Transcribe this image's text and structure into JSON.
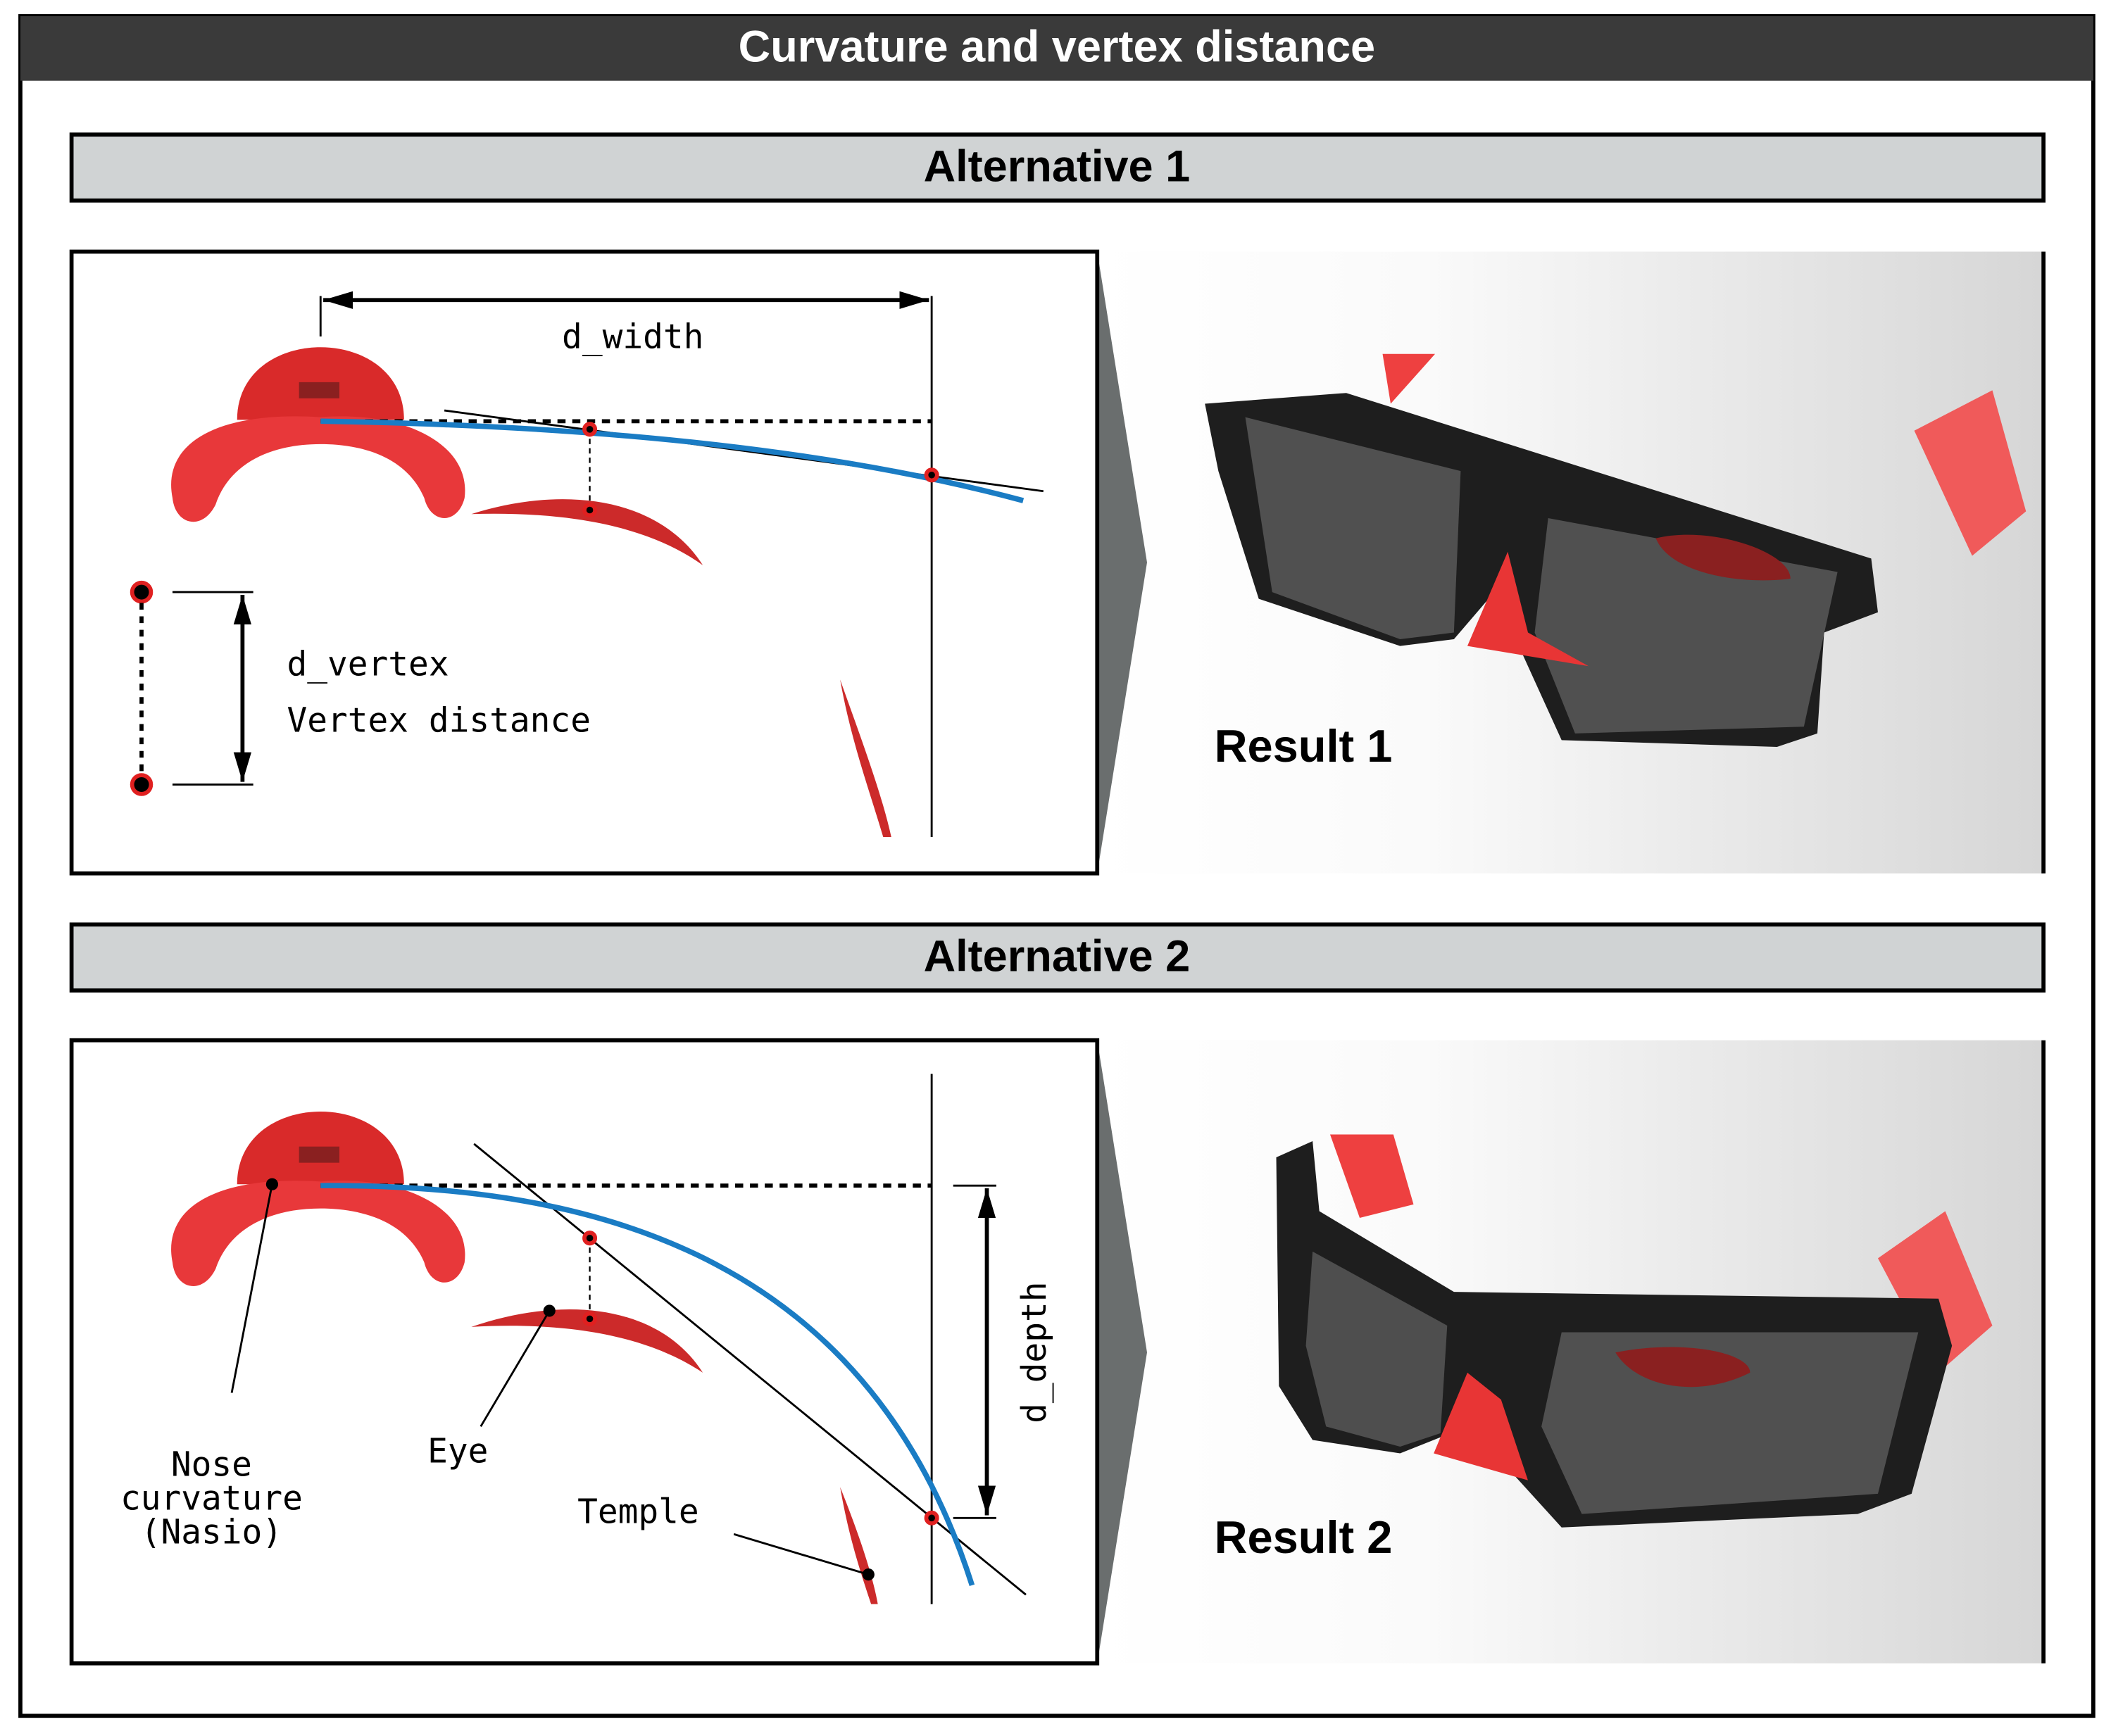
{
  "title": "Curvature and vertex distance",
  "panels": [
    {
      "heading": "Alternative 1",
      "d_width": "d_width",
      "d_vertex": "d_vertex",
      "vertex_distance": "Vertex distance",
      "result": "Result 1"
    },
    {
      "heading": "Alternative 2",
      "d_depth": "d_depth",
      "nose_label": [
        "Nose",
        "curvature",
        "(Nasio)"
      ],
      "eye_label": "Eye",
      "temple_label": "Temple",
      "result": "Result 2"
    }
  ]
}
